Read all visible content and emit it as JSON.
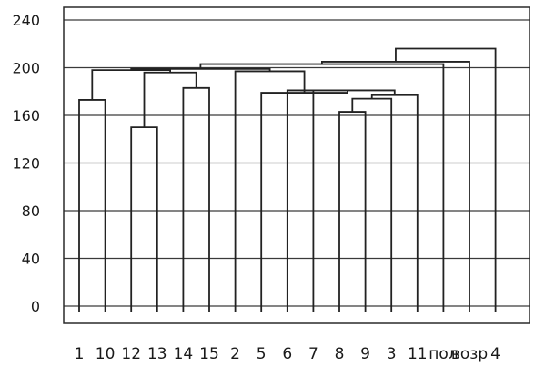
{
  "chart_data": {
    "type": "dendrogram",
    "title": "",
    "xlabel": "",
    "ylabel": "",
    "ylim": [
      -10,
      250
    ],
    "y_ticks": [
      0,
      40,
      80,
      120,
      160,
      200,
      240
    ],
    "grid": true,
    "leaves": [
      "1",
      "10",
      "12",
      "13",
      "14",
      "15",
      "2",
      "5",
      "6",
      "7",
      "8",
      "9",
      "3",
      "11",
      "пол",
      "возр",
      "4"
    ],
    "x_tick_labels": [
      "1",
      "10",
      "12",
      "13",
      "14",
      "15",
      "2",
      "5",
      "6",
      "7",
      "8",
      "9",
      "3",
      "11",
      "пол",
      "возр",
      "4"
    ],
    "leaf_base": -5,
    "merges": [
      {
        "left": "1",
        "right": "10",
        "height": 173
      },
      {
        "left": "12",
        "right": "13",
        "height": 150
      },
      {
        "left": "14",
        "right": "15",
        "height": 183
      },
      {
        "left": "8",
        "right": "9",
        "height": 163
      },
      {
        "left": "8-9",
        "right": "3",
        "height": 174
      },
      {
        "left": "8-9-3",
        "right": "11",
        "height": 177
      },
      {
        "left": "6",
        "right": "7",
        "height": 181
      },
      {
        "left": "6-7",
        "right": "8-9-3-11",
        "height": 181
      },
      {
        "left": "5",
        "right": "6-7-8-9-3-11",
        "height": 179
      },
      {
        "left": "12-13",
        "right": "14-15",
        "height": 196
      },
      {
        "left": "2",
        "right": "5-6-7-8-9-3-11",
        "height": 197
      },
      {
        "left": "1-10",
        "right": "12-13-14-15",
        "height": 198
      },
      {
        "left": "A",
        "right": "B",
        "height": 199
      },
      {
        "left": "AB",
        "right": "пол",
        "height": 203
      },
      {
        "left": "ABп",
        "right": "возр",
        "height": 205
      },
      {
        "left": "ABпв",
        "right": "4",
        "height": 216
      }
    ]
  }
}
